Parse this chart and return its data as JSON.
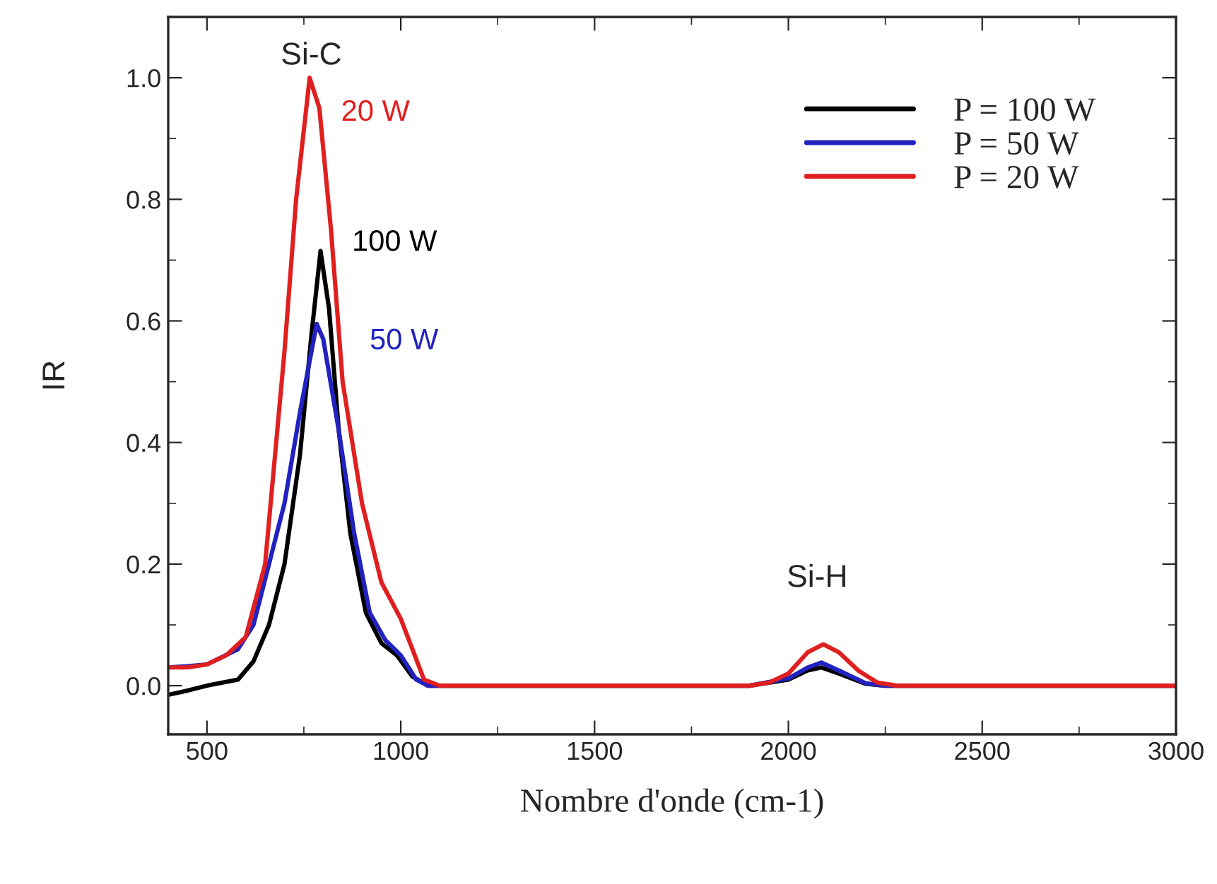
{
  "chart_data": {
    "type": "line",
    "xlabel": "Nombre d'onde (cm-1)",
    "ylabel": "IR",
    "xlim": [
      400,
      3000
    ],
    "ylim": [
      -0.08,
      1.1
    ],
    "xticks": [
      500,
      1000,
      1500,
      2000,
      2500,
      3000
    ],
    "yticks": [
      {
        "value": 0,
        "label": "0.0"
      },
      {
        "value": 0.2,
        "label": "0.2"
      },
      {
        "value": 0.4,
        "label": "0.4"
      },
      {
        "value": 0.6,
        "label": "0.6"
      },
      {
        "value": 0.8,
        "label": "0.8"
      },
      {
        "value": 1.0,
        "label": "1.0"
      }
    ],
    "grid": false,
    "legend": "top right",
    "line_style": "solid",
    "marker": "none",
    "series": [
      {
        "name": "P = 100 W",
        "color": "#000000",
        "x": [
          400,
          450,
          500,
          580,
          620,
          660,
          700,
          740,
          770,
          793,
          815,
          840,
          870,
          910,
          950,
          990,
          1030,
          1070,
          1200,
          1500,
          1900,
          2000,
          2050,
          2085,
          2130,
          2200,
          2250,
          2600,
          3000
        ],
        "values": [
          -0.015,
          -0.008,
          0.0,
          0.01,
          0.04,
          0.1,
          0.2,
          0.38,
          0.58,
          0.715,
          0.62,
          0.42,
          0.25,
          0.12,
          0.07,
          0.05,
          0.015,
          0.0,
          0.0,
          0.0,
          0.0,
          0.01,
          0.025,
          0.03,
          0.02,
          0.003,
          0.0,
          0.0,
          0.0
        ]
      },
      {
        "name": "P = 50 W",
        "color": "#2222c0",
        "x": [
          400,
          450,
          500,
          580,
          620,
          660,
          700,
          740,
          783,
          800,
          840,
          880,
          920,
          960,
          1000,
          1040,
          1070,
          1200,
          1500,
          1900,
          2000,
          2050,
          2085,
          2130,
          2200,
          2250,
          2600,
          3000
        ],
        "values": [
          0.03,
          0.032,
          0.035,
          0.06,
          0.1,
          0.2,
          0.3,
          0.45,
          0.595,
          0.57,
          0.42,
          0.25,
          0.12,
          0.075,
          0.05,
          0.01,
          0.0,
          0.0,
          0.0,
          0.0,
          0.012,
          0.03,
          0.038,
          0.025,
          0.004,
          0.0,
          0.0,
          0.0
        ]
      },
      {
        "name": "P = 20 W",
        "color": "#e02020",
        "x": [
          400,
          450,
          500,
          550,
          600,
          650,
          700,
          730,
          765,
          790,
          820,
          850,
          900,
          950,
          1000,
          1030,
          1060,
          1100,
          1500,
          1900,
          1950,
          2000,
          2050,
          2090,
          2130,
          2180,
          2230,
          2280,
          3000
        ],
        "values": [
          0.03,
          0.03,
          0.035,
          0.05,
          0.08,
          0.2,
          0.55,
          0.8,
          1.0,
          0.95,
          0.75,
          0.5,
          0.3,
          0.17,
          0.11,
          0.06,
          0.01,
          0.0,
          0.0,
          0.0,
          0.005,
          0.02,
          0.055,
          0.068,
          0.055,
          0.025,
          0.005,
          0.0,
          0.0
        ]
      }
    ],
    "annotations": [
      "Si-C",
      {
        "text": "20 W",
        "x": 765,
        "y": 1.0
      },
      {
        "text": "100 W",
        "x": 793,
        "y": 0.715
      },
      {
        "text": "50 W",
        "x": 783,
        "y": 0.595
      },
      "Si-H"
    ]
  }
}
